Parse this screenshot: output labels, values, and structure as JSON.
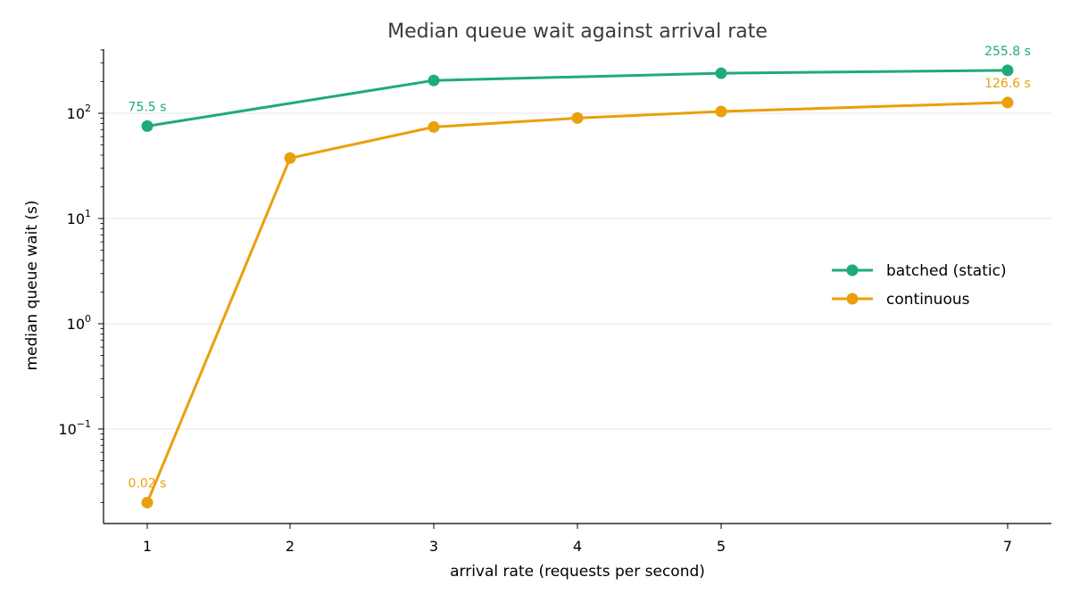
{
  "chart_data": {
    "type": "line",
    "title": "Median queue wait against arrival rate",
    "xlabel": "arrival rate (requests per second)",
    "ylabel": "median queue wait (s)",
    "yscale": "log",
    "ylim": [
      0.013,
      420
    ],
    "xlim": [
      0.7,
      7.3
    ],
    "x_ticks": [
      1,
      2,
      3,
      4,
      5,
      7
    ],
    "y_ticks": [
      {
        "value": 0.1,
        "base": "10",
        "exp": "−1"
      },
      {
        "value": 1,
        "base": "10",
        "exp": "0"
      },
      {
        "value": 10,
        "base": "10",
        "exp": "1"
      },
      {
        "value": 100,
        "base": "10",
        "exp": "2"
      }
    ],
    "grid": "horizontal",
    "legend_position": "right",
    "series": [
      {
        "name": "batched (static)",
        "color": "#1fab78",
        "x": [
          1,
          3,
          5,
          7
        ],
        "y": [
          75.5,
          205,
          240,
          255.8
        ],
        "annotations": [
          {
            "x": 1,
            "y": 75.5,
            "text": "75.5 s"
          },
          {
            "x": 7,
            "y": 255.8,
            "text": "255.8 s"
          }
        ]
      },
      {
        "name": "continuous",
        "color": "#e9a00c",
        "x": [
          1,
          2,
          3,
          4,
          5,
          7
        ],
        "y": [
          0.02,
          37.5,
          74,
          90,
          104,
          126.6
        ],
        "annotations": [
          {
            "x": 1,
            "y": 0.02,
            "text": "0.02 s"
          },
          {
            "x": 7,
            "y": 126.6,
            "text": "126.6 s"
          }
        ]
      }
    ]
  }
}
